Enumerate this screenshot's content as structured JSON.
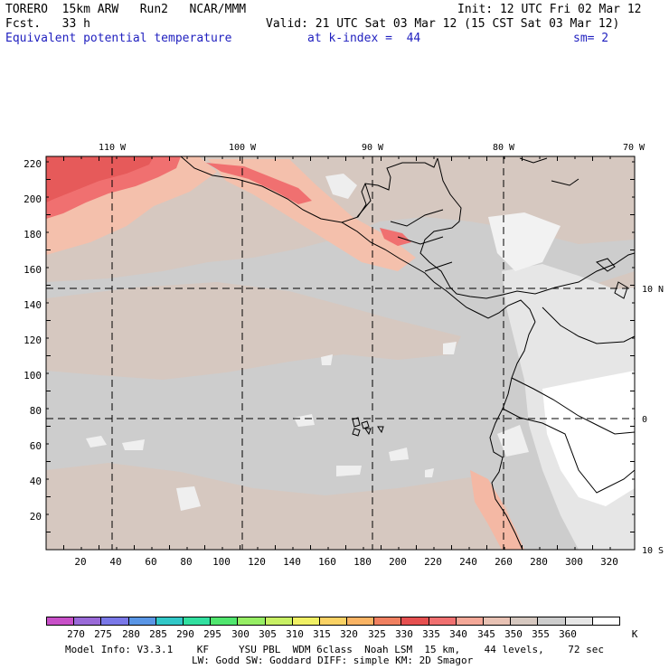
{
  "header": {
    "model_name": "TORERO  15km ARW   Run2   NCAR/MMM",
    "init": "Init: 12 UTC Fri 02 Mar 12",
    "fcst": "Fcst.   33 h",
    "valid": "Valid: 21 UTC Sat 03 Mar 12 (15 CST Sat 03 Mar 12)",
    "field": "Equivalent potential temperature",
    "level": "at k-index =  44",
    "smoothing": "sm= 2"
  },
  "map": {
    "lon_labels": [
      "110 W",
      "100 W",
      "90 W",
      "80 W",
      "70 W"
    ],
    "lat_labels": [
      "10 N",
      "0",
      "10 S"
    ],
    "y_ticks": [
      "220",
      "200",
      "180",
      "160",
      "140",
      "120",
      "100",
      "80",
      "60",
      "40",
      "20"
    ],
    "x_ticks": [
      "20",
      "40",
      "60",
      "80",
      "100",
      "120",
      "140",
      "160",
      "180",
      "200",
      "220",
      "240",
      "260",
      "280",
      "300",
      "320"
    ]
  },
  "colorbar": {
    "labels": [
      "270",
      "275",
      "280",
      "285",
      "290",
      "295",
      "300",
      "305",
      "310",
      "315",
      "320",
      "325",
      "330",
      "335",
      "340",
      "345",
      "350",
      "355",
      "360"
    ],
    "unit": "K",
    "colors": [
      "#c850c8",
      "#9a6ad8",
      "#7a78e8",
      "#5a96e6",
      "#32c8c8",
      "#32e0a0",
      "#50e66e",
      "#96ee64",
      "#c8f064",
      "#f0f064",
      "#fad264",
      "#fab464",
      "#f08060",
      "#e65050",
      "#f07070",
      "#f4a898",
      "#e8c2b4",
      "#d6c8c0",
      "#cdcdcd",
      "#e6e6e6",
      "#ffffff"
    ]
  },
  "footer": {
    "model_info": "Model Info: V3.3.1    KF     YSU PBL  WDM 6class  Noah LSM  15 km,    44 levels,    72 sec",
    "physics": "LW: Godd SW: Goddard DIFF: simple KM: 2D Smagor"
  }
}
